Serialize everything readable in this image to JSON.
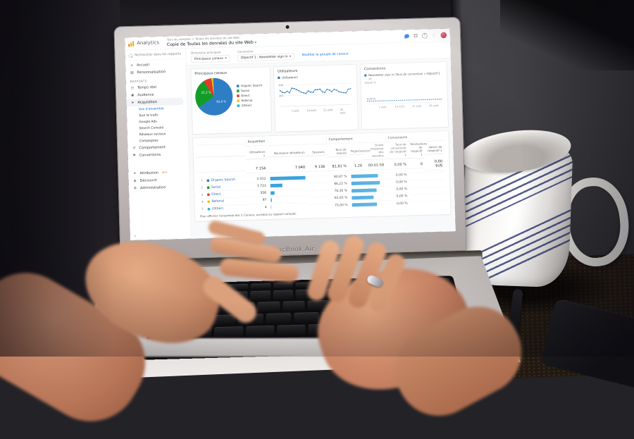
{
  "scene": {
    "laptop_label": "MacBook Air"
  },
  "icons": {
    "caret_down": "▾",
    "sort_down": "↓",
    "help": "?",
    "more_vertical": "⋮",
    "collapse": "‹"
  },
  "analytics": {
    "app_name": "Analytics",
    "breadcrumb": "Tous les comptes > Toutes les données du site Web",
    "view_title": "Copie de Toutes les données du site Web",
    "sidebar": {
      "search_placeholder": "Rechercher dans les rapports",
      "sections": [
        {
          "items": [
            {
              "name": "home",
              "icon": "⌂",
              "label": "Accueil"
            },
            {
              "name": "customization",
              "icon": "▤",
              "label": "Personnalisation"
            }
          ]
        },
        {
          "header": "RAPPORTS",
          "items": [
            {
              "name": "realtime",
              "icon": "◷",
              "label": "Temps réel"
            },
            {
              "name": "audience",
              "icon": "◉",
              "label": "Audience"
            },
            {
              "name": "acquisition",
              "icon": "➤",
              "label": "Acquisition",
              "active": true,
              "children": [
                {
                  "label": "Vue d'ensemble",
                  "active": true
                },
                {
                  "label": "Tout le trafic"
                },
                {
                  "label": "Google Ads"
                },
                {
                  "label": "Search Console"
                },
                {
                  "label": "Réseaux sociaux"
                },
                {
                  "label": "Campagnes"
                }
              ]
            },
            {
              "name": "behavior",
              "icon": "↺",
              "label": "Comportement"
            },
            {
              "name": "conversions",
              "icon": "⚑",
              "label": "Conversions"
            }
          ]
        },
        {
          "gap": true,
          "items": [
            {
              "name": "attribution",
              "icon": "✦",
              "label": "Attribution",
              "badge": "BETA"
            },
            {
              "name": "discover",
              "icon": "◈",
              "label": "Découvrir"
            },
            {
              "name": "admin",
              "icon": "⚙",
              "label": "Administration"
            }
          ]
        }
      ]
    },
    "toolbar": {
      "dimension_label": "Dimension principale",
      "dimension_value": "Principaux canaux",
      "conversion_label": "Conversion",
      "conversion_value": "Objectif 1 : Newsletter sign in",
      "edit_link": "Modifier le groupe de canaux"
    }
  },
  "chart_data": [
    {
      "type": "pie",
      "title": "Principaux canaux",
      "labels": [
        "Organic Search",
        "Social",
        "Direct",
        "Referral",
        "(Other)"
      ],
      "values": [
        65.6,
        25.3,
        7.2,
        1.4,
        0.5
      ],
      "colors": [
        "#2e7ec6",
        "#149c28",
        "#df3a2d",
        "#f4c20d",
        "#27b2d8"
      ],
      "slice_labels": [
        {
          "text": "65,6 %",
          "x": "56%",
          "y": "60%"
        },
        {
          "text": "25,3 %",
          "x": "16%",
          "y": "34%"
        }
      ],
      "legend_position": "right"
    },
    {
      "type": "line",
      "title": "Utilisateurs",
      "series": [
        {
          "name": "Utilisateurs",
          "values": [
            300,
            262,
            255,
            283,
            252,
            338,
            331,
            309,
            287,
            258,
            244,
            231,
            278,
            254,
            249,
            299,
            296,
            306,
            252,
            240,
            298,
            284,
            251,
            294,
            279,
            249,
            236,
            228,
            218,
            288,
            299
          ]
        }
      ],
      "x_ticks": [
        "7 août",
        "14 août",
        "21 août",
        "28 août"
      ],
      "x_tick_days": [
        7,
        14,
        21,
        28
      ],
      "ylim": [
        0,
        450
      ],
      "y_ticks": [
        400,
        200
      ],
      "line_color": "#3079b5",
      "grid": true
    },
    {
      "type": "line",
      "title": "Conversions",
      "series": [
        {
          "name": "Newsletter sign in (Taux de conversion « Objectif 1 »)",
          "values": [
            0,
            0,
            0,
            0,
            0,
            0,
            0,
            0,
            0,
            0,
            0,
            0,
            0,
            0,
            0,
            0,
            0,
            0,
            0,
            0,
            0,
            0,
            0,
            0,
            0,
            0,
            0,
            0,
            0,
            0,
            0
          ]
        }
      ],
      "x_ticks": [
        "7 août",
        "14 août",
        "21 août",
        "28 août"
      ],
      "x_tick_days": [
        7,
        14,
        21,
        28
      ],
      "ylim": [
        0,
        100
      ],
      "y_top_label": "100,00 %",
      "line_label": "0,00 %",
      "line_color": "#3079b5",
      "grid": false
    }
  ],
  "table": {
    "col_groups": [
      "Acquisition",
      "Comportement",
      "Conversions"
    ],
    "columns": [
      "Utilisateurs ↓",
      "Nouveaux utilisateurs",
      "Sessions",
      "Taux de rebond",
      "Pages/session",
      "Durée moyenne des sessions",
      "Taux de conversion de l'objectif 1",
      "Réalisations de l'objectif 1",
      "Valeur de l'objectif 1"
    ],
    "totals": [
      "7 154",
      "7 040",
      "9 138",
      "81,81 %",
      "1,26",
      "00:01:58",
      "0,00 %",
      "0",
      "0,00 $US"
    ],
    "rows": [
      {
        "index": "1",
        "label": "Organic Search",
        "color": "#2e7ec6",
        "users": "5 012",
        "users_pct": 100,
        "bounce": "80,87 %",
        "bounce_pct": 81,
        "conv": "0,00 %"
      },
      {
        "index": "2",
        "label": "Social",
        "color": "#149c28",
        "users": "1 723",
        "users_pct": 34,
        "bounce": "86,22 %",
        "bounce_pct": 86,
        "conv": "0,00 %"
      },
      {
        "index": "3",
        "label": "Direct",
        "color": "#df3a2d",
        "users": "556",
        "users_pct": 11,
        "bounce": "76,36 %",
        "bounce_pct": 76,
        "conv": "0,00 %"
      },
      {
        "index": "4",
        "label": "Referral",
        "color": "#f4c20d",
        "users": "97",
        "users_pct": 2.5,
        "bounce": "65,65 %",
        "bounce_pct": 66,
        "conv": "0,00 %"
      },
      {
        "index": "5",
        "label": "(Other)",
        "color": "#27b2d8",
        "users": "4",
        "users_pct": 0.8,
        "bounce": "75,00 %",
        "bounce_pct": 75,
        "conv": "0,00 %"
      }
    ],
    "footnote": "Pour afficher l'ensemble des 5 Canaux, accédez au rapport complet."
  }
}
